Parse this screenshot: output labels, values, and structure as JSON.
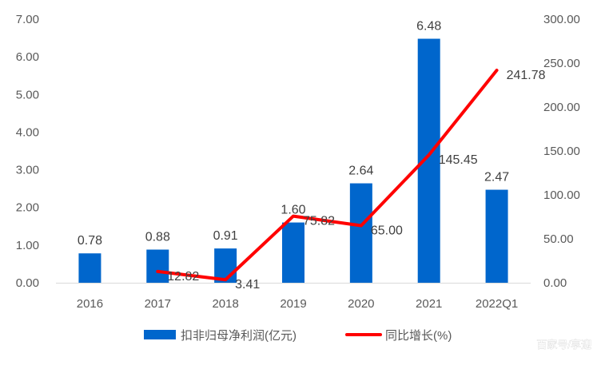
{
  "chart_data": {
    "type": "bar+line",
    "categories": [
      "2016",
      "2017",
      "2018",
      "2019",
      "2020",
      "2021",
      "2022Q1"
    ],
    "series": [
      {
        "name": "扣非归母净利润(亿元)",
        "type": "bar",
        "axis": "left",
        "values": [
          0.78,
          0.88,
          0.91,
          1.6,
          2.64,
          6.48,
          2.47
        ],
        "labels": [
          "0.78",
          "0.88",
          "0.91",
          "1.60",
          "2.64",
          "6.48",
          "2.47"
        ]
      },
      {
        "name": "同比增长(%)",
        "type": "line",
        "axis": "right",
        "values": [
          null,
          12.82,
          3.41,
          75.82,
          65.0,
          145.45,
          241.78
        ],
        "labels": [
          "",
          "12.82",
          "3.41",
          "75.82",
          "65.00",
          "145.45",
          "241.78"
        ]
      }
    ],
    "ylim_left": [
      0,
      7
    ],
    "ylim_right": [
      0,
      300
    ],
    "left_ticks": [
      "0.00",
      "1.00",
      "2.00",
      "3.00",
      "4.00",
      "5.00",
      "6.00",
      "7.00"
    ],
    "right_ticks": [
      "0.00",
      "50.00",
      "100.00",
      "150.00",
      "200.00",
      "250.00",
      "300.00"
    ],
    "grid": false,
    "legend_position": "bottom",
    "colors": {
      "bar": "#0066CC",
      "line": "#FF0000",
      "axis": "#D9D9D9",
      "text": "#595959"
    }
  },
  "watermark": "百家号/享迎"
}
